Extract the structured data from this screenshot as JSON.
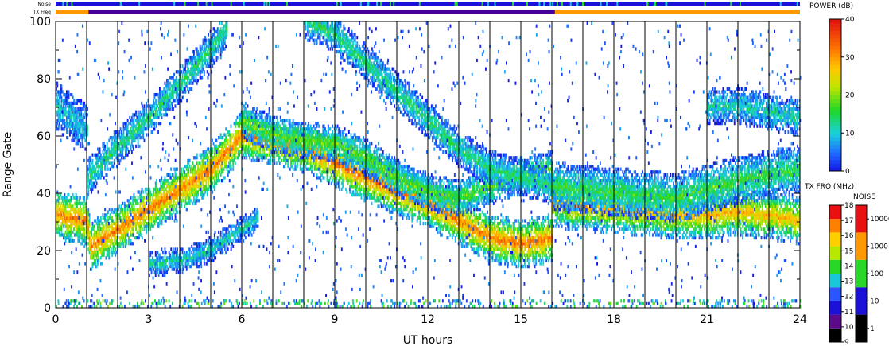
{
  "chart_data": {
    "type": "heatmap",
    "xlabel": "UT hours",
    "ylabel": "Range Gate",
    "xlim": [
      0,
      24
    ],
    "ylim": [
      0,
      100
    ],
    "x_ticks": [
      "0",
      "3",
      "6",
      "9",
      "12",
      "15",
      "18",
      "21",
      "24"
    ],
    "y_ticks": [
      "0",
      "20",
      "40",
      "60",
      "80",
      "100"
    ],
    "scan_boundaries_ut": [
      1,
      2,
      3,
      4,
      5,
      6,
      7,
      8,
      9,
      10,
      11,
      12,
      13,
      14,
      15,
      16,
      17,
      18,
      19,
      20,
      21,
      22,
      23
    ],
    "header_strips": {
      "noise_label": "Noise",
      "txfreq_label": "TX Freq",
      "txfreq_segments": [
        {
          "start": 0,
          "end": 1.06,
          "color": "#ff9900"
        },
        {
          "start": 1.06,
          "end": 16.1,
          "color": "#440099"
        },
        {
          "start": 16.1,
          "end": 24,
          "color": "#ff9900"
        }
      ],
      "noise_color": "#1a10d8"
    },
    "bands": [
      {
        "name": "band-a",
        "points": [
          [
            0,
            32
          ],
          [
            1,
            30
          ],
          [
            1.1,
            21
          ],
          [
            2,
            27
          ],
          [
            3,
            34
          ],
          [
            4,
            41
          ],
          [
            5,
            48
          ],
          [
            6,
            60
          ],
          [
            7,
            58
          ],
          [
            8,
            55
          ],
          [
            9,
            50
          ],
          [
            10,
            45
          ],
          [
            11,
            40
          ],
          [
            12,
            36
          ],
          [
            13,
            30
          ],
          [
            14,
            24
          ],
          [
            15,
            22
          ],
          [
            16,
            24
          ]
        ],
        "width": 4,
        "peak": 32
      },
      {
        "name": "band-b",
        "points": [
          [
            1,
            45
          ],
          [
            2,
            56
          ],
          [
            3,
            66
          ],
          [
            4,
            78
          ],
          [
            5,
            90
          ],
          [
            5.5,
            97
          ]
        ],
        "width": 3,
        "peak": 14
      },
      {
        "name": "band-c",
        "points": [
          [
            3,
            15
          ],
          [
            4,
            16
          ],
          [
            5,
            20
          ],
          [
            6,
            27
          ],
          [
            6.5,
            31
          ]
        ],
        "width": 2,
        "peak": 12
      },
      {
        "name": "band-d",
        "points": [
          [
            6,
            65
          ],
          [
            7,
            60
          ],
          [
            8,
            58
          ],
          [
            9,
            57
          ],
          [
            10,
            52
          ],
          [
            11,
            45
          ],
          [
            12,
            40
          ],
          [
            13,
            38
          ],
          [
            14,
            42
          ],
          [
            15,
            46
          ],
          [
            16,
            48
          ]
        ],
        "width": 3,
        "peak": 18
      },
      {
        "name": "band-e",
        "points": [
          [
            8,
            100
          ],
          [
            9,
            95
          ],
          [
            10,
            85
          ],
          [
            11,
            75
          ],
          [
            12,
            65
          ],
          [
            13,
            55
          ],
          [
            14,
            48
          ],
          [
            15,
            45
          ],
          [
            16,
            42
          ]
        ],
        "width": 3,
        "peak": 14
      },
      {
        "name": "band-f",
        "points": [
          [
            16,
            36
          ],
          [
            18,
            34
          ],
          [
            20,
            32
          ],
          [
            21,
            32
          ],
          [
            22,
            33
          ],
          [
            23,
            32
          ],
          [
            24,
            30
          ]
        ],
        "width": 4,
        "peak": 28
      },
      {
        "name": "band-g",
        "points": [
          [
            16,
            42
          ],
          [
            18,
            40
          ],
          [
            20,
            38
          ],
          [
            22,
            44
          ],
          [
            24,
            48
          ]
        ],
        "width": 4,
        "peak": 16
      },
      {
        "name": "band-h",
        "points": [
          [
            21,
            70
          ],
          [
            22,
            70
          ],
          [
            23,
            68
          ],
          [
            24,
            66
          ]
        ],
        "width": 3,
        "peak": 12
      },
      {
        "name": "band-i",
        "points": [
          [
            0,
            70
          ],
          [
            0.5,
            66
          ],
          [
            1,
            62
          ]
        ],
        "width": 4,
        "peak": 10
      }
    ],
    "power_scale": {
      "title": "POWER (dB)",
      "min": 0,
      "max": 40,
      "ticks": [
        "0",
        "10",
        "20",
        "30",
        "40"
      ]
    },
    "txfreq_scale": {
      "title": "TX FRQ (MHz)",
      "ticks": [
        "9",
        "10",
        "11",
        "12",
        "13",
        "14",
        "15",
        "16",
        "17",
        "18"
      ],
      "colors": [
        "#000000",
        "#5a0a8a",
        "#1a10d8",
        "#2a55ff",
        "#19c8d8",
        "#28d828",
        "#b8e800",
        "#ffd000",
        "#ff8000",
        "#e81010"
      ]
    },
    "noise_scale": {
      "title": "NOISE",
      "ticks": [
        "1",
        "10",
        "100",
        "1000",
        "10000"
      ],
      "colors": [
        "#000000",
        "#1a10d8",
        "#28d828",
        "#ff9900",
        "#e81010"
      ]
    }
  }
}
